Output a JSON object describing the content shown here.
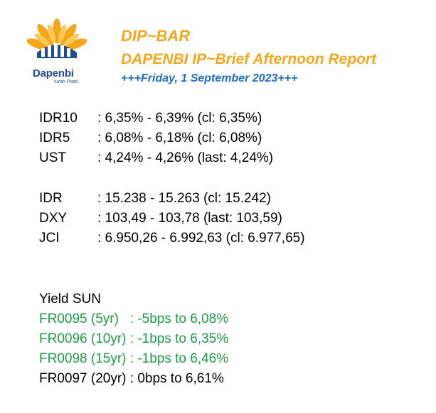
{
  "header": {
    "logo_name": "Dapenbi",
    "logo_tagline": "Iuran Pasti",
    "title": "DIP~BAR",
    "subtitle": "DAPENBI IP~Brief Afternoon Report",
    "date_line": "+++Friday, 1 September 2023+++",
    "colors": {
      "orange": "#f5a71c",
      "blue": "#1f6fbf",
      "green": "#1e9b45"
    }
  },
  "yields": [
    {
      "label": "IDR10",
      "value": ": 6,35% - 6,39% (cl: 6,35%)"
    },
    {
      "label": "IDR5",
      "value": ": 6,08% - 6,18% (cl: 6,08%)"
    },
    {
      "label": "UST",
      "value": ": 4,24% - 4,26% (last: 4,24%)"
    }
  ],
  "markets": [
    {
      "label": "IDR",
      "value": ": 15.238 - 15.263 (cl: 15.242)"
    },
    {
      "label": "DXY",
      "value": ": 103,49 - 103,78 (last: 103,59)"
    },
    {
      "label": "JCI",
      "value": ": 6.950,26 - 6.992,63 (cl: 6.977,65)"
    }
  ],
  "sun": {
    "heading": "Yield SUN",
    "rows": [
      {
        "text": "FR0095 (5yr)   : -5bps to 6,08%",
        "color": "green"
      },
      {
        "text": "FR0096 (10yr) : -1bps to 6,35%",
        "color": "green"
      },
      {
        "text": "FR0098 (15yr) : -1bps to 6,46%",
        "color": "green"
      },
      {
        "text": "FR0097 (20yr) : 0bps to 6,61%",
        "color": "black"
      }
    ]
  }
}
